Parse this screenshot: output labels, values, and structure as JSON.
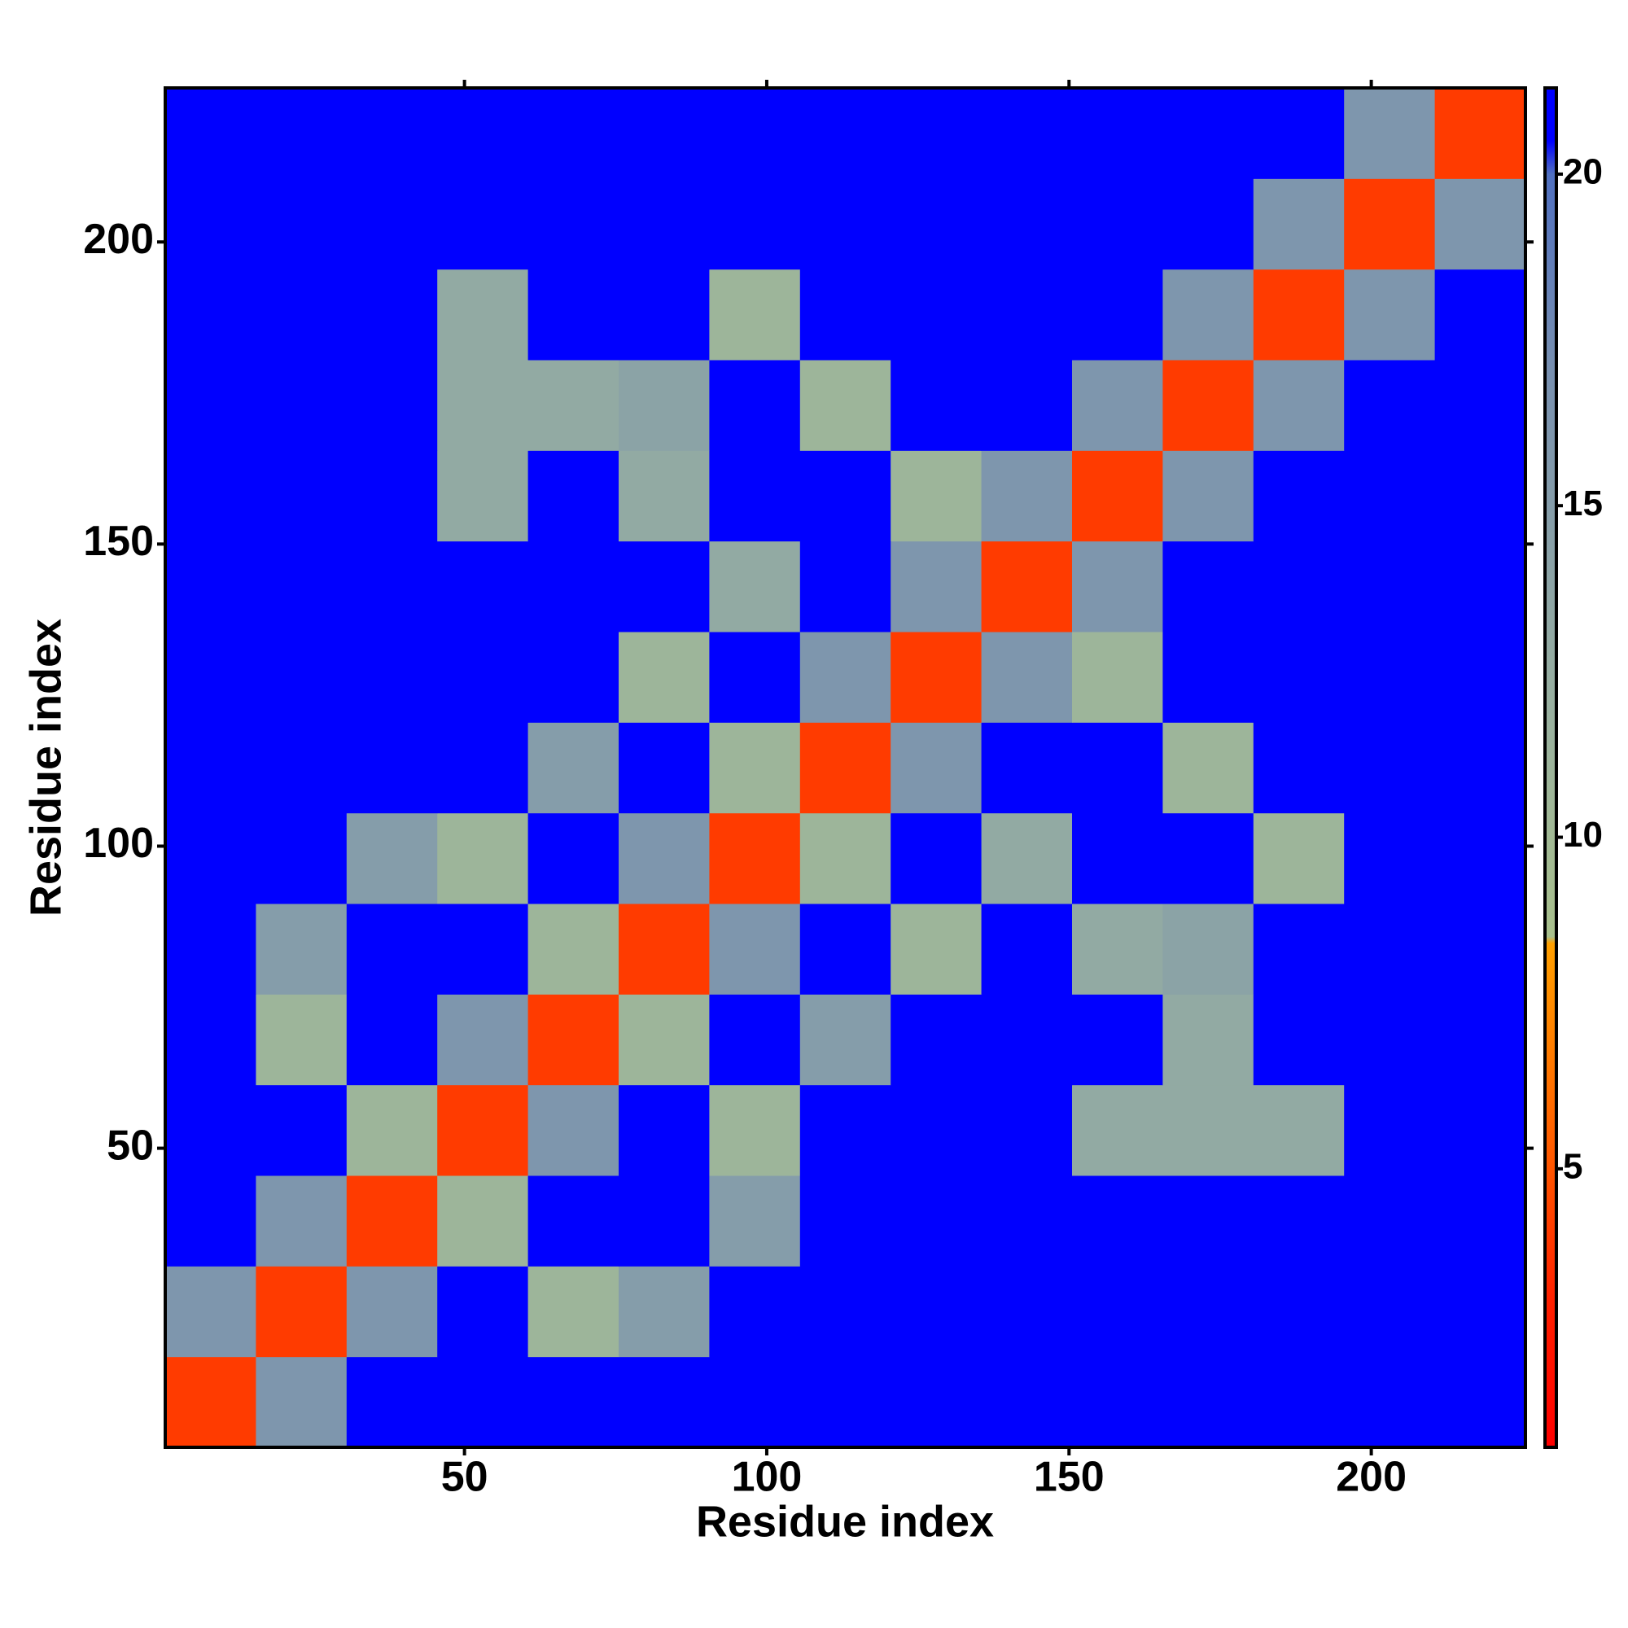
{
  "chart_data": {
    "type": "heatmap",
    "xlabel": "Residue index",
    "ylabel": "Residue index",
    "x": [
      8,
      23,
      38,
      53,
      68,
      83,
      98,
      113,
      128,
      143,
      158,
      173,
      188,
      203,
      218
    ],
    "y": [
      8,
      23,
      38,
      53,
      68,
      83,
      98,
      113,
      128,
      143,
      158,
      173,
      188,
      203,
      218
    ],
    "z": [
      [
        4,
        16,
        21,
        21,
        21,
        21,
        21,
        21,
        21,
        21,
        21,
        21,
        21,
        21,
        21
      ],
      [
        16,
        4,
        16,
        21,
        11,
        15,
        21,
        21,
        21,
        21,
        21,
        21,
        21,
        21,
        21
      ],
      [
        21,
        16,
        4,
        11,
        21,
        21,
        15,
        21,
        21,
        21,
        21,
        21,
        21,
        21,
        21
      ],
      [
        21,
        21,
        11,
        4,
        16,
        21,
        11,
        21,
        21,
        21,
        13,
        13,
        13,
        21,
        21
      ],
      [
        21,
        11,
        21,
        16,
        4,
        11,
        21,
        15,
        21,
        21,
        21,
        13,
        21,
        21,
        21
      ],
      [
        21,
        15,
        21,
        21,
        11,
        4,
        16,
        21,
        11,
        21,
        13,
        14,
        21,
        21,
        21
      ],
      [
        21,
        21,
        15,
        11,
        21,
        16,
        4,
        11,
        21,
        13,
        21,
        21,
        11,
        21,
        21
      ],
      [
        21,
        21,
        21,
        21,
        15,
        21,
        11,
        4,
        16,
        21,
        21,
        11,
        21,
        21,
        21
      ],
      [
        21,
        21,
        21,
        21,
        21,
        11,
        21,
        16,
        4,
        16,
        11,
        21,
        21,
        21,
        21
      ],
      [
        21,
        21,
        21,
        21,
        21,
        21,
        13,
        21,
        16,
        4,
        16,
        21,
        21,
        21,
        21
      ],
      [
        21,
        21,
        21,
        13,
        21,
        13,
        21,
        21,
        11,
        16,
        4,
        16,
        21,
        21,
        21
      ],
      [
        21,
        21,
        21,
        13,
        13,
        14,
        21,
        11,
        21,
        21,
        16,
        4,
        16,
        21,
        21
      ],
      [
        21,
        21,
        21,
        13,
        21,
        21,
        11,
        21,
        21,
        21,
        21,
        16,
        4,
        16,
        21
      ],
      [
        21,
        21,
        21,
        21,
        21,
        21,
        21,
        21,
        21,
        21,
        21,
        21,
        16,
        4,
        16
      ],
      [
        21,
        21,
        21,
        21,
        21,
        21,
        21,
        21,
        21,
        21,
        21,
        21,
        21,
        16,
        4
      ]
    ],
    "xlim": [
      0.5,
      225.5
    ],
    "ylim": [
      0.5,
      225.5
    ],
    "xticks": [
      50,
      100,
      150,
      200
    ],
    "yticks": [
      50,
      100,
      150,
      200
    ],
    "clim": [
      0.8,
      21.3
    ],
    "cticks": [
      5,
      10,
      15,
      20
    ],
    "colorscale": [
      [
        0.8,
        "#ff0000"
      ],
      [
        3,
        "#ff2000"
      ],
      [
        5,
        "#ff5500"
      ],
      [
        8.4,
        "#ffa000"
      ],
      [
        8.5,
        "#a8c08c"
      ],
      [
        12,
        "#98b0a0"
      ],
      [
        17,
        "#7890b0"
      ],
      [
        20,
        "#5070c0"
      ],
      [
        20.5,
        "#0000ff"
      ],
      [
        21.3,
        "#0000ff"
      ]
    ]
  }
}
